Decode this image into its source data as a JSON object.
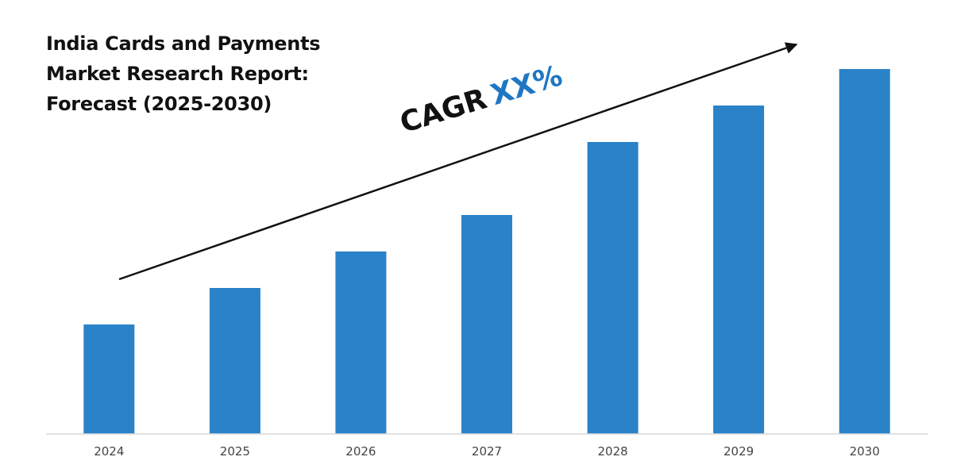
{
  "title_lines": [
    "India Cards and Payments",
    "Market Research Report:",
    "Forecast (2025-2030)"
  ],
  "cagr": {
    "label": "CAGR",
    "value": "XX%"
  },
  "colors": {
    "bar": "#2a82c8",
    "axis": "#d9d9d9",
    "tick_label": "#444444",
    "arrow": "#111111",
    "cagr_value": "#1f77c4"
  },
  "chart_data": {
    "type": "bar",
    "categories": [
      "2024",
      "2025",
      "2026",
      "2027",
      "2028",
      "2029",
      "2030"
    ],
    "values": [
      30,
      40,
      50,
      60,
      80,
      90,
      100
    ],
    "xlabel": "",
    "ylabel": "",
    "ylim": [
      0,
      100
    ],
    "grid": false,
    "legend": "none",
    "annotations": [
      "CAGR XX%"
    ]
  }
}
